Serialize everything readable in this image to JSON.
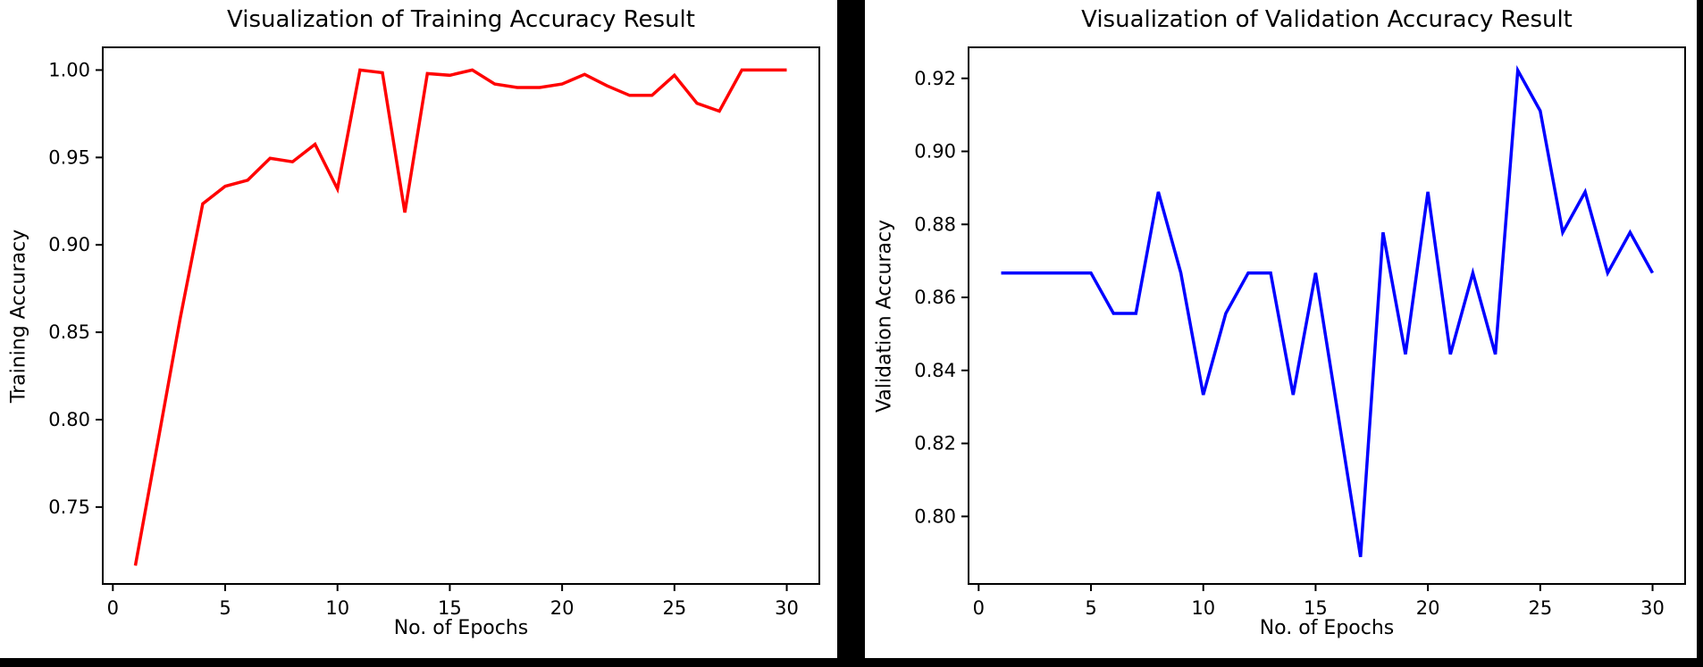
{
  "page": {
    "background_color": "#000000",
    "panel_color": "#ffffff",
    "axis_color": "#000000"
  },
  "chart_data": [
    {
      "type": "line",
      "title": "Visualization of Training Accuracy Result",
      "xlabel": "No. of Epochs",
      "ylabel": "Training Accuracy",
      "line_color": "#ff0000",
      "legend": null,
      "grid": false,
      "xlim": [
        -0.45,
        31.45
      ],
      "ylim": [
        0.706,
        1.013
      ],
      "xticks": [
        "0",
        "5",
        "10",
        "15",
        "20",
        "25",
        "30"
      ],
      "yticks": [
        "0.75",
        "0.80",
        "0.85",
        "0.90",
        "0.95",
        "1.00"
      ],
      "x": [
        1,
        2,
        3,
        4,
        5,
        6,
        7,
        8,
        9,
        10,
        11,
        12,
        13,
        14,
        15,
        16,
        17,
        18,
        19,
        20,
        21,
        22,
        23,
        24,
        25,
        26,
        27,
        28,
        29,
        30
      ],
      "values": [
        0.7165,
        0.787,
        0.858,
        0.9235,
        0.9335,
        0.937,
        0.9495,
        0.9475,
        0.9575,
        0.932,
        1.0,
        0.9985,
        0.9185,
        0.998,
        0.997,
        1.0,
        0.992,
        0.99,
        0.99,
        0.992,
        0.9975,
        0.991,
        0.9855,
        0.9855,
        0.997,
        0.981,
        0.9765,
        1.0,
        1.0,
        1.0
      ]
    },
    {
      "type": "line",
      "title": "Visualization of Validation Accuracy Result",
      "xlabel": "No. of Epochs",
      "ylabel": "Validation Accuracy",
      "line_color": "#0000ff",
      "legend": null,
      "grid": false,
      "xlim": [
        -0.45,
        31.45
      ],
      "ylim": [
        0.7815,
        0.9285
      ],
      "xticks": [
        "0",
        "5",
        "10",
        "15",
        "20",
        "25",
        "30"
      ],
      "yticks": [
        "0.80",
        "0.82",
        "0.84",
        "0.86",
        "0.88",
        "0.90",
        "0.92"
      ],
      "x": [
        1,
        2,
        3,
        4,
        5,
        6,
        7,
        8,
        9,
        10,
        11,
        12,
        13,
        14,
        15,
        16,
        17,
        18,
        19,
        20,
        21,
        22,
        23,
        24,
        25,
        26,
        27,
        28,
        29,
        30
      ],
      "values": [
        0.8667,
        0.8667,
        0.8667,
        0.8667,
        0.8667,
        0.8556,
        0.8556,
        0.8889,
        0.8667,
        0.8333,
        0.8556,
        0.8667,
        0.8667,
        0.8333,
        0.8667,
        0.8278,
        0.7889,
        0.8778,
        0.8444,
        0.8889,
        0.8444,
        0.8667,
        0.8444,
        0.9222,
        0.9111,
        0.8778,
        0.8889,
        0.8667,
        0.8778,
        0.8667
      ]
    }
  ]
}
